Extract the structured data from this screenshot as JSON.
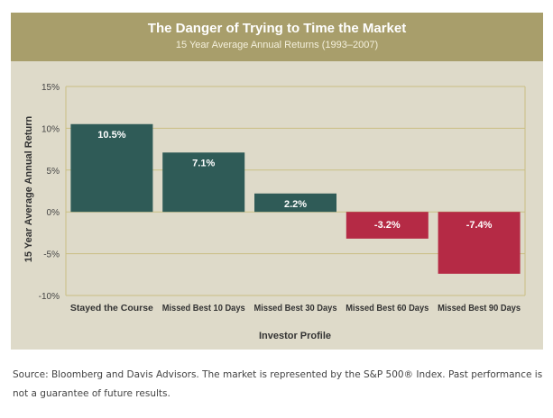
{
  "chart_data": {
    "type": "bar",
    "title": "The Danger of Trying to Time the Market",
    "subtitle": "15 Year Average Annual Returns (1993–2007)",
    "xlabel": "Investor Profile",
    "ylabel": "15 Year Average Annual Return",
    "categories": [
      "Stayed the Course",
      "Missed Best 10 Days",
      "Missed Best 30 Days",
      "Missed Best 60 Days",
      "Missed Best 90 Days"
    ],
    "values": [
      10.5,
      7.1,
      2.2,
      -3.2,
      -7.4
    ],
    "value_labels": [
      "10.5%",
      "7.1%",
      "2.2%",
      "-3.2%",
      "-7.4%"
    ],
    "ylim": [
      -10,
      15
    ],
    "yticks": [
      15,
      10,
      5,
      0,
      -5,
      -10
    ],
    "ytick_labels": [
      "15%",
      "10%",
      "5%",
      "0%",
      "-5%",
      "-10%"
    ],
    "grid": true,
    "colors": {
      "positive": "#2f5b57",
      "negative": "#b52a45",
      "gridline": "#c9bf84",
      "header": "#a89e6b",
      "panel": "#dedac9"
    }
  },
  "footnote": "Source: Bloomberg and Davis Advisors. The market is represented by the S&P 500® Index. Past performance is not a guarantee of future results."
}
